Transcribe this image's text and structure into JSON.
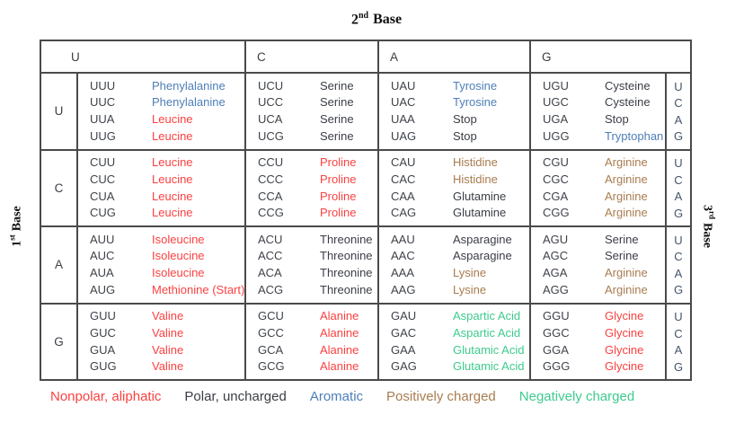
{
  "title": {
    "number": "2",
    "sup": "nd",
    "word": "Base"
  },
  "left_axis_label": {
    "number": "1",
    "sup": "st",
    "word": "Base"
  },
  "right_axis_label": {
    "number": "3",
    "sup": "rd",
    "word": "Base"
  },
  "header_bases": [
    "U",
    "C",
    "A",
    "G"
  ],
  "colors": {
    "nonpolar": "#fc4040",
    "polar": "#3a3e45",
    "aromatic": "#4d7eb8",
    "positive": "#a87c4f",
    "negative": "#3ecb8d",
    "codon": "#3f434a",
    "first_base": "#3a3e45",
    "third_base": "#44546a",
    "border": "#4a4a4a"
  },
  "rows": [
    {
      "base1": "U",
      "cells": [
        {
          "entries": [
            [
              "UUU",
              "Phenylalanine",
              "aromatic"
            ],
            [
              "UUC",
              "Phenylalanine",
              "aromatic"
            ],
            [
              "UUA",
              "Leucine",
              "nonpolar"
            ],
            [
              "UUG",
              "Leucine",
              "nonpolar"
            ]
          ]
        },
        {
          "entries": [
            [
              "UCU",
              "Serine",
              "polar"
            ],
            [
              "UCC",
              "Serine",
              "polar"
            ],
            [
              "UCA",
              "Serine",
              "polar"
            ],
            [
              "UCG",
              "Serine",
              "polar"
            ]
          ]
        },
        {
          "entries": [
            [
              "UAU",
              "Tyrosine",
              "aromatic"
            ],
            [
              "UAC",
              "Tyrosine",
              "aromatic"
            ],
            [
              "UAA",
              "Stop",
              "polar"
            ],
            [
              "UAG",
              "Stop",
              "polar"
            ]
          ]
        },
        {
          "entries": [
            [
              "UGU",
              "Cysteine",
              "polar"
            ],
            [
              "UGC",
              "Cysteine",
              "polar"
            ],
            [
              "UGA",
              "Stop",
              "polar"
            ],
            [
              "UGG",
              "Tryptophan",
              "aromatic"
            ]
          ]
        }
      ],
      "base3": [
        "U",
        "C",
        "A",
        "G"
      ]
    },
    {
      "base1": "C",
      "cells": [
        {
          "entries": [
            [
              "CUU",
              "Leucine",
              "nonpolar"
            ],
            [
              "CUC",
              "Leucine",
              "nonpolar"
            ],
            [
              "CUA",
              "Leucine",
              "nonpolar"
            ],
            [
              "CUG",
              "Leucine",
              "nonpolar"
            ]
          ]
        },
        {
          "entries": [
            [
              "CCU",
              "Proline",
              "nonpolar"
            ],
            [
              "CCC",
              "Proline",
              "nonpolar"
            ],
            [
              "CCA",
              "Proline",
              "nonpolar"
            ],
            [
              "CCG",
              "Proline",
              "nonpolar"
            ]
          ]
        },
        {
          "entries": [
            [
              "CAU",
              "Histidine",
              "positive"
            ],
            [
              "CAC",
              "Histidine",
              "positive"
            ],
            [
              "CAA",
              "Glutamine",
              "polar"
            ],
            [
              "CAG",
              "Glutamine",
              "polar"
            ]
          ]
        },
        {
          "entries": [
            [
              "CGU",
              "Arginine",
              "positive"
            ],
            [
              "CGC",
              "Arginine",
              "positive"
            ],
            [
              "CGA",
              "Arginine",
              "positive"
            ],
            [
              "CGG",
              "Arginine",
              "positive"
            ]
          ]
        }
      ],
      "base3": [
        "U",
        "C",
        "A",
        "G"
      ]
    },
    {
      "base1": "A",
      "cells": [
        {
          "entries": [
            [
              "AUU",
              "Isoleucine",
              "nonpolar"
            ],
            [
              "AUC",
              "Isoleucine",
              "nonpolar"
            ],
            [
              "AUA",
              "Isoleucine",
              "nonpolar"
            ],
            [
              "AUG",
              "Methionine (Start)",
              "nonpolar"
            ]
          ]
        },
        {
          "entries": [
            [
              "ACU",
              "Threonine",
              "polar"
            ],
            [
              "ACC",
              "Threonine",
              "polar"
            ],
            [
              "ACA",
              "Threonine",
              "polar"
            ],
            [
              "ACG",
              "Threonine",
              "polar"
            ]
          ]
        },
        {
          "entries": [
            [
              "AAU",
              "Asparagine",
              "polar"
            ],
            [
              "AAC",
              "Asparagine",
              "polar"
            ],
            [
              "AAA",
              "Lysine",
              "positive"
            ],
            [
              "AAG",
              "Lysine",
              "positive"
            ]
          ]
        },
        {
          "entries": [
            [
              "AGU",
              "Serine",
              "polar"
            ],
            [
              "AGC",
              "Serine",
              "polar"
            ],
            [
              "AGA",
              "Arginine",
              "positive"
            ],
            [
              "AGG",
              "Arginine",
              "positive"
            ]
          ]
        }
      ],
      "base3": [
        "U",
        "C",
        "A",
        "G"
      ]
    },
    {
      "base1": "G",
      "cells": [
        {
          "entries": [
            [
              "GUU",
              "Valine",
              "nonpolar"
            ],
            [
              "GUC",
              "Valine",
              "nonpolar"
            ],
            [
              "GUA",
              "Valine",
              "nonpolar"
            ],
            [
              "GUG",
              "Valine",
              "nonpolar"
            ]
          ]
        },
        {
          "entries": [
            [
              "GCU",
              "Alanine",
              "nonpolar"
            ],
            [
              "GCC",
              "Alanine",
              "nonpolar"
            ],
            [
              "GCA",
              "Alanine",
              "nonpolar"
            ],
            [
              "GCG",
              "Alanine",
              "nonpolar"
            ]
          ]
        },
        {
          "entries": [
            [
              "GAU",
              "Aspartic Acid",
              "negative"
            ],
            [
              "GAC",
              "Aspartic Acid",
              "negative"
            ],
            [
              "GAA",
              "Glutamic Acid",
              "negative"
            ],
            [
              "GAG",
              "Glutamic Acid",
              "negative"
            ]
          ]
        },
        {
          "entries": [
            [
              "GGU",
              "Glycine",
              "nonpolar"
            ],
            [
              "GGC",
              "Glycine",
              "nonpolar"
            ],
            [
              "GGA",
              "Glycine",
              "nonpolar"
            ],
            [
              "GGG",
              "Glycine",
              "nonpolar"
            ]
          ]
        }
      ],
      "base3": [
        "U",
        "C",
        "A",
        "G"
      ]
    }
  ],
  "legend": [
    {
      "label": "Nonpolar, aliphatic",
      "key": "nonpolar"
    },
    {
      "label": "Polar, uncharged",
      "key": "polar"
    },
    {
      "label": "Aromatic",
      "key": "aromatic"
    },
    {
      "label": "Positively charged",
      "key": "positive"
    },
    {
      "label": "Negatively charged",
      "key": "negative"
    }
  ]
}
